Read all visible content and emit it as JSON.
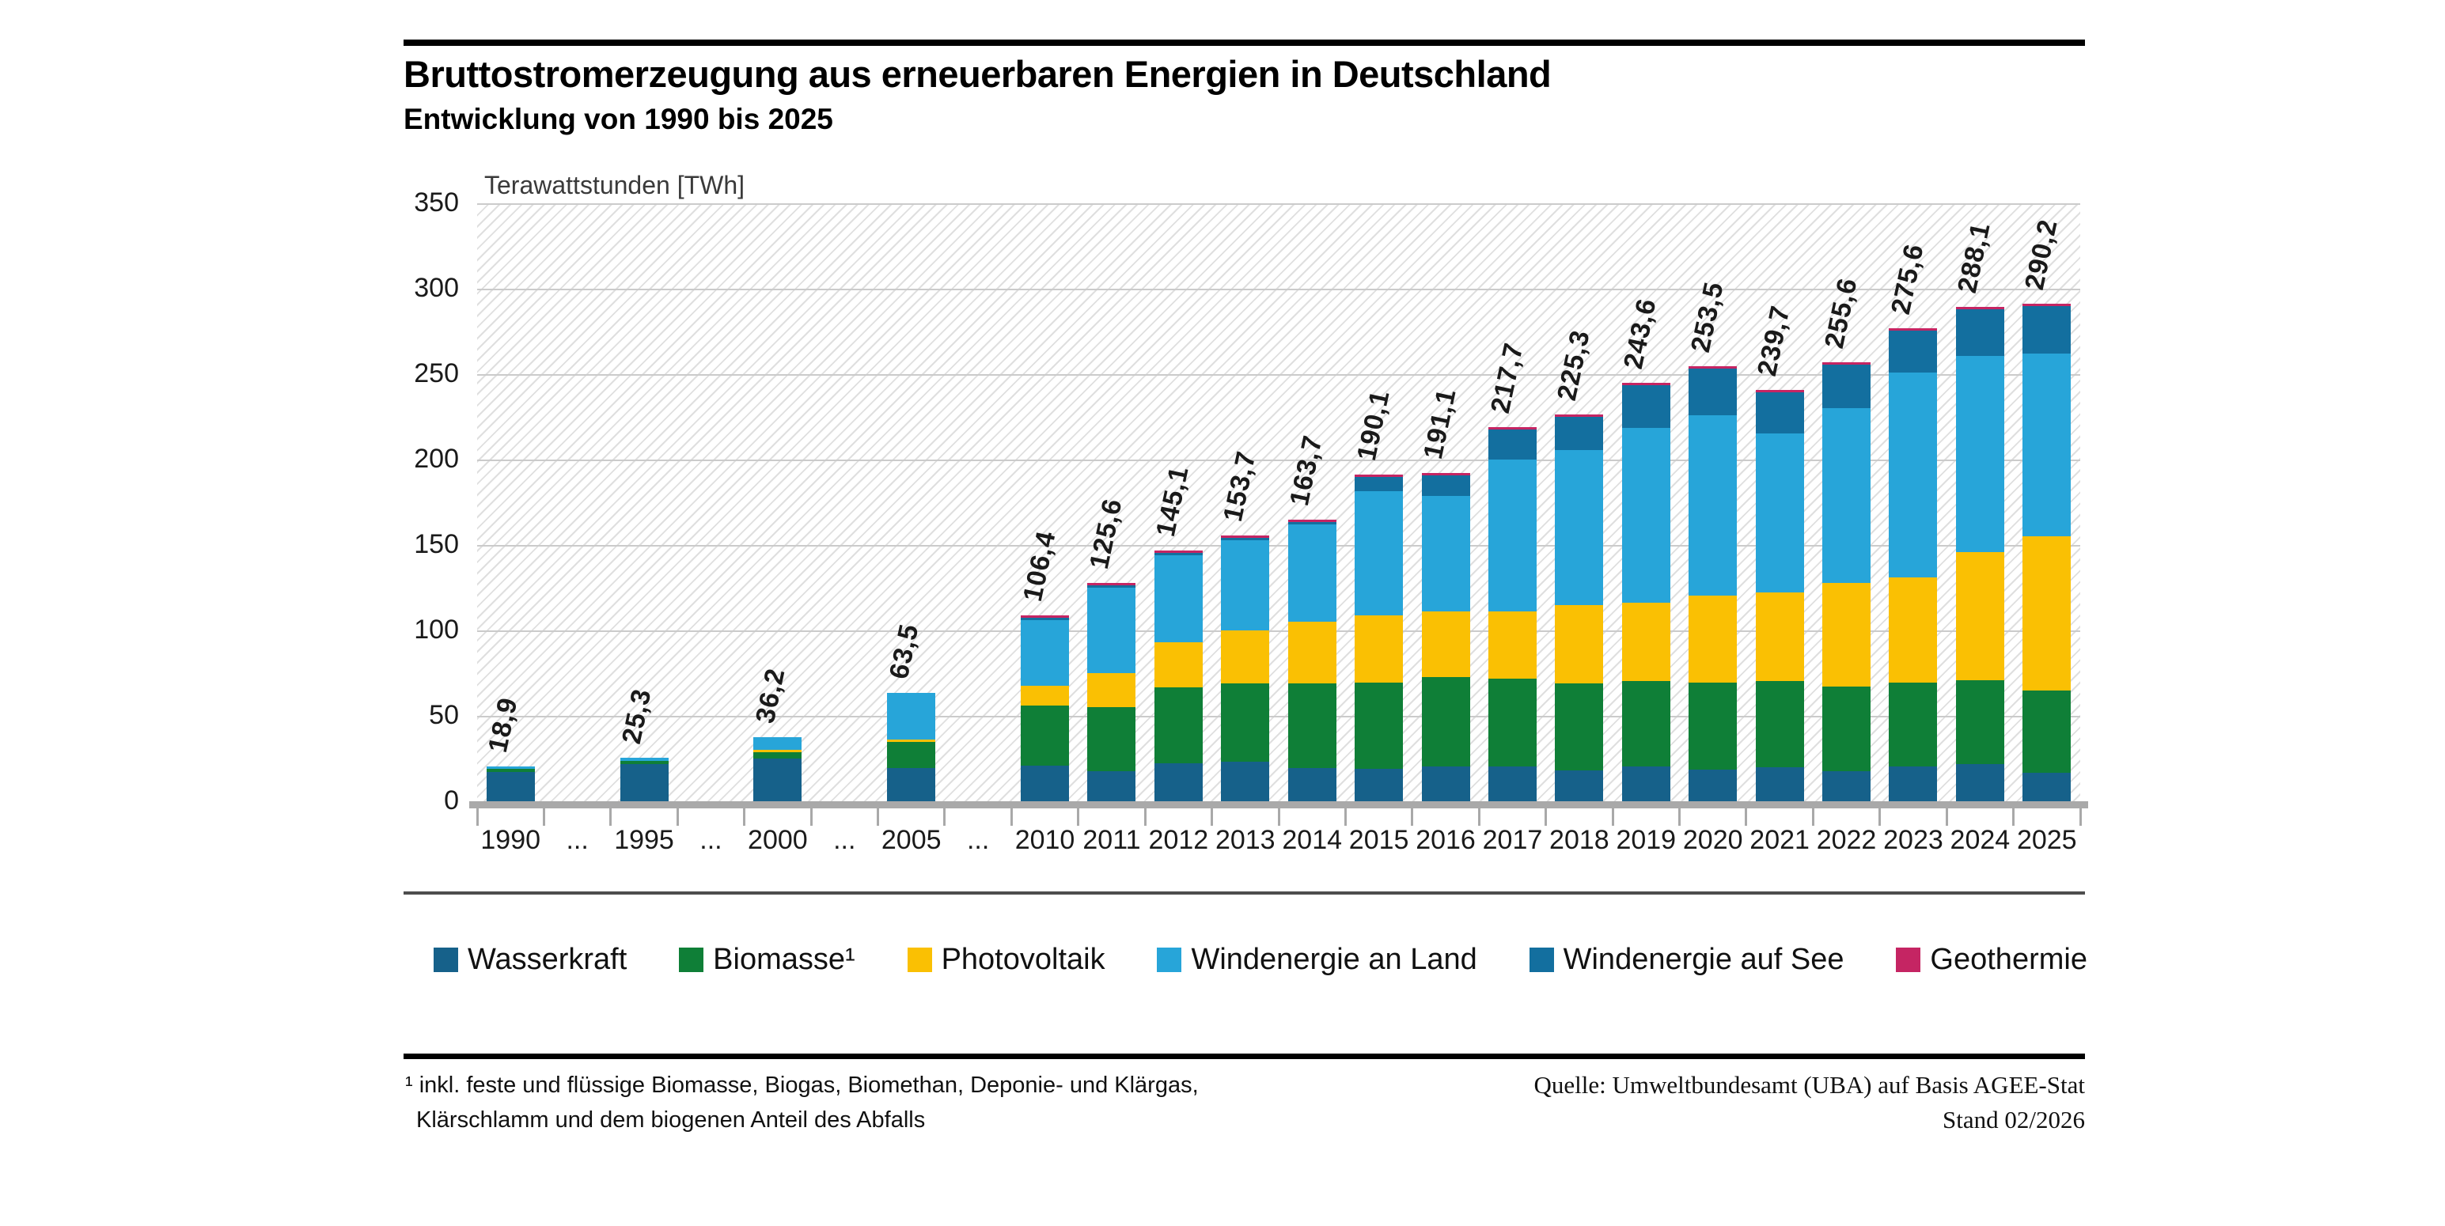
{
  "header": {
    "title": "Bruttostromerzeugung aus erneuerbaren Energien in Deutschland",
    "subtitle": "Entwicklung von 1990 bis 2025"
  },
  "chart_data": {
    "type": "bar",
    "stacked": true,
    "title": "Bruttostromerzeugung aus erneuerbaren Energien in Deutschland",
    "unit_label": "Terawattstunden [TWh]",
    "ylim": [
      0,
      350
    ],
    "yticks": [
      0,
      50,
      100,
      150,
      200,
      250,
      300,
      350
    ],
    "grid": "horizontal",
    "background": "diagonal-hatch",
    "legend_position": "bottom",
    "categories": [
      "1990",
      "...",
      "1995",
      "...",
      "2000",
      "...",
      "2005",
      "...",
      "2010",
      "2011",
      "2012",
      "2013",
      "2014",
      "2015",
      "2016",
      "2017",
      "2018",
      "2019",
      "2020",
      "2021",
      "2022",
      "2023",
      "2024",
      "2025"
    ],
    "totals_labels": [
      "18,9",
      null,
      "25,3",
      null,
      "36,2",
      null,
      "63,5",
      null,
      "106,4",
      "125,6",
      "145,1",
      "153,7",
      "163,7",
      "190,1",
      "191,1",
      "217,7",
      "225,3",
      "243,6",
      "253,5",
      "239,7",
      "255,6",
      "275,6",
      "288,1",
      "290,2"
    ],
    "totals": [
      18.9,
      null,
      25.3,
      null,
      36.2,
      null,
      63.5,
      null,
      106.4,
      125.6,
      145.1,
      153.7,
      163.7,
      190.1,
      191.1,
      217.7,
      225.3,
      243.6,
      253.5,
      239.7,
      255.6,
      275.6,
      288.1,
      290.2
    ],
    "series": [
      {
        "name": "Wasserkraft",
        "color": "#16618a",
        "values": [
          17.0,
          null,
          21.6,
          null,
          24.9,
          null,
          19.6,
          null,
          21.0,
          17.7,
          22.1,
          23.0,
          19.6,
          19.0,
          20.5,
          20.2,
          18.0,
          20.2,
          18.7,
          19.7,
          17.5,
          20.3,
          21.6,
          16.5
        ]
      },
      {
        "name": "Biomasse¹",
        "color": "#0f7f37",
        "values": [
          1.8,
          null,
          2.2,
          null,
          3.9,
          null,
          15.3,
          null,
          34.9,
          37.6,
          44.5,
          46.2,
          49.5,
          50.3,
          52.4,
          51.4,
          51.2,
          50.1,
          50.8,
          50.6,
          49.5,
          49.2,
          49.4,
          48.5
        ]
      },
      {
        "name": "Photovoltaik",
        "color": "#fac003",
        "values": [
          0,
          null,
          0,
          null,
          0.1,
          null,
          1.3,
          null,
          11.7,
          19.6,
          26.4,
          31.0,
          36.1,
          39.4,
          38.1,
          39.4,
          45.8,
          46.0,
          51.0,
          51.7,
          60.8,
          61.5,
          75.0,
          90.0
        ]
      },
      {
        "name": "Windenergie an Land",
        "color": "#27a5d9",
        "values": [
          0.1,
          null,
          1.5,
          null,
          7.3,
          null,
          27.3,
          null,
          38.5,
          50.0,
          51.2,
          52.5,
          57.0,
          73.0,
          67.8,
          88.8,
          90.5,
          102.4,
          105.5,
          93.1,
          102.4,
          120.1,
          114.5,
          107.0
        ]
      },
      {
        "name": "Windenergie auf See",
        "color": "#136f9f",
        "values": [
          0,
          null,
          0,
          null,
          0,
          null,
          0,
          null,
          0.2,
          0.6,
          0.8,
          0.9,
          1.4,
          8.3,
          12.1,
          17.7,
          19.6,
          24.7,
          27.3,
          24.4,
          25.2,
          24.3,
          27.4,
          28.0
        ]
      },
      {
        "name": "Geothermie",
        "color": "#c52563",
        "values": [
          0,
          null,
          0,
          null,
          0,
          null,
          0,
          null,
          0.1,
          0.1,
          0.1,
          0.1,
          0.1,
          0.1,
          0.2,
          0.2,
          0.2,
          0.2,
          0.2,
          0.2,
          0.2,
          0.2,
          0.2,
          0.2
        ]
      }
    ]
  },
  "footnote": {
    "line1": "¹ inkl. feste und flüssige Biomasse, Biogas, Biomethan, Deponie- und Klärgas,",
    "line2": "Klärschlamm und dem biogenen Anteil des Abfalls"
  },
  "source": {
    "line1": "Quelle: Umweltbundesamt (UBA) auf Basis AGEE-Stat",
    "line2": "Stand 02/2026"
  }
}
